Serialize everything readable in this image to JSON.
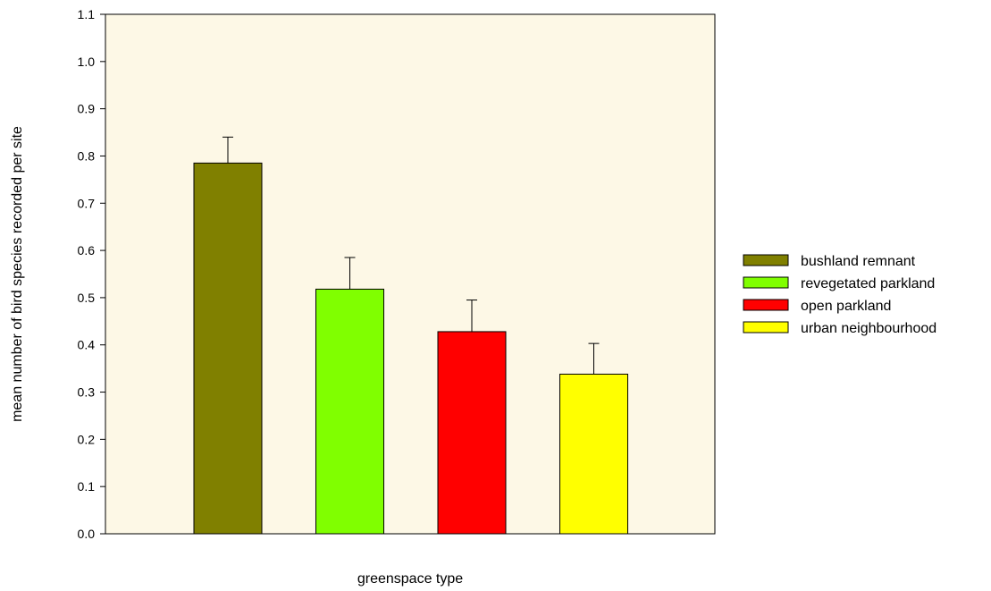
{
  "chart_data": {
    "type": "bar",
    "title": "",
    "xlabel": "greenspace type",
    "ylabel": "mean number of bird species recorded per site",
    "ylim": [
      0,
      1.1
    ],
    "yticks": [
      "0.0",
      "0.1",
      "0.2",
      "0.3",
      "0.4",
      "0.5",
      "0.6",
      "0.7",
      "0.8",
      "0.9",
      "1.0",
      "1.1"
    ],
    "grid": false,
    "legend_position": "right",
    "plot_background": "#fdf8e6",
    "categories": [
      "bushland remnant",
      "revegetated parkland",
      "open parkland",
      "urban neighbourhood"
    ],
    "values": [
      0.785,
      0.518,
      0.428,
      0.338
    ],
    "errors": [
      0.055,
      0.067,
      0.067,
      0.065
    ],
    "colors": [
      "#808000",
      "#80ff00",
      "#ff0000",
      "#ffff00"
    ]
  }
}
